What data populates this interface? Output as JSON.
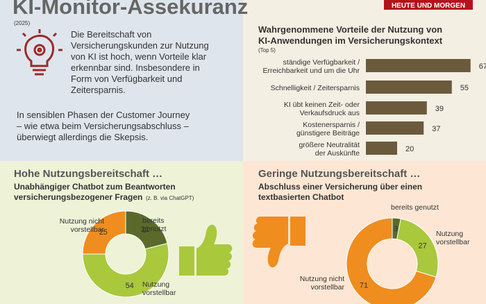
{
  "header": {
    "title": "KI-Monitor-Assekuranz",
    "year": "(2025)",
    "brand": "HEUTE UND MORGEN",
    "intro": [
      "Die Bereitschaft von",
      "Versicherungskunden zur Nutzung",
      "von KI ist hoch, wenn Vorteile klar",
      "erkennbar sind. Insbesondere in",
      "Form von Verfügbarkeit und",
      "Zeitersparnis."
    ],
    "note": [
      "In sensiblen Phasen der Customer Journey",
      "– wie etwa beim Versicherungsabschluss –",
      "überwiegt allerdings die Skepsis."
    ]
  },
  "chart_data": [
    {
      "type": "bar",
      "title": [
        "Wahrgenommene Vorteile der Nutzung von",
        "KI-Anwendungen im Versicherungskontext"
      ],
      "subtitle": "(Top 5)",
      "categories": [
        [
          "ständige Verfügbarkeit /",
          "Erreichbarkeit und um die Uhr"
        ],
        [
          "Schnelligkeit / Zeitersparnis"
        ],
        [
          "KI übt keinen Zeit- oder",
          "Verkaufsdruck aus"
        ],
        [
          "Kostenersparnis /",
          "günstigere Beiträge"
        ],
        [
          "größere Neutralität",
          "der Auskünfte"
        ]
      ],
      "values": [
        67,
        55,
        39,
        37,
        20
      ],
      "color": "#6b5a3c"
    },
    {
      "type": "pie",
      "heading": "Hohe Nutzungsbereitschaft …",
      "title": [
        "Unabhängiger Chatbot zum Beantworten",
        "versicherungsbezogener Fragen"
      ],
      "subtitle": "(z. B. via ChatGPT)",
      "categories": [
        [
          "bereits",
          "genutzt"
        ],
        [
          "Nutzung",
          "vorstellbar"
        ],
        [
          "Nutzung nicht",
          "vorstellbar"
        ]
      ],
      "values": [
        21,
        54,
        25
      ],
      "colors": [
        "#5b6a2a",
        "#a9c83c",
        "#ef8d1f"
      ]
    },
    {
      "type": "pie",
      "heading": "Geringe Nutzungsbereitschaft …",
      "title": [
        "Abschluss einer Versicherung über einen",
        "textbasierten Chatbot"
      ],
      "categories": [
        [
          "bereits genutzt"
        ],
        [
          "Nutzung",
          "vorstellbar"
        ],
        [
          "Nutzung nicht",
          "vorstellbar"
        ]
      ],
      "values": [
        3,
        27,
        71
      ],
      "colors": [
        "#5b6a2a",
        "#a9c83c",
        "#ef8d1f"
      ]
    }
  ]
}
